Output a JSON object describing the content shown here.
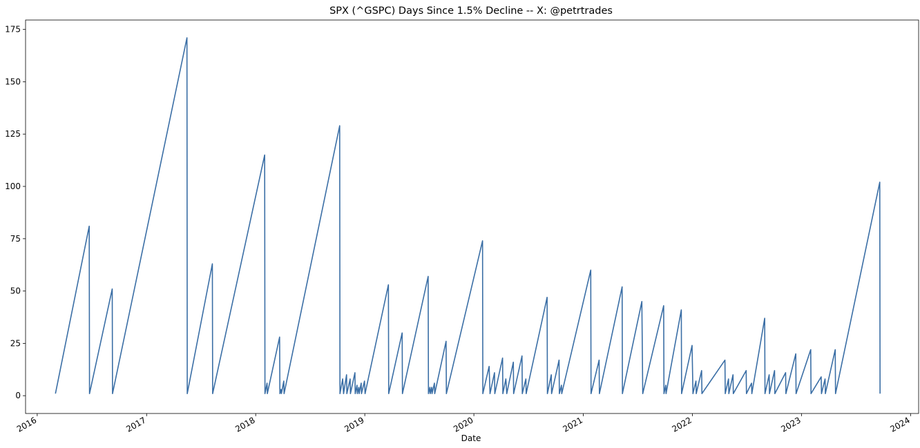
{
  "chart_data": {
    "type": "line",
    "title": "SPX (^GSPC) Days Since 1.5% Decline -- X: @petrtrades",
    "xlabel": "Date",
    "ylabel": "",
    "xlim": [
      "2015-11-23",
      "2024-01-28"
    ],
    "ylim": [
      -8.5,
      179.5
    ],
    "xticks": [
      "2016",
      "2017",
      "2018",
      "2019",
      "2020",
      "2021",
      "2022",
      "2023",
      "2024"
    ],
    "yticks": [
      0,
      25,
      50,
      75,
      100,
      125,
      150,
      175
    ],
    "grid": false,
    "legend": "none",
    "colors": {
      "line": "#3a6ea5",
      "frame": "#000000",
      "background": "#ffffff"
    },
    "series": [
      {
        "x": [
          "2016-03-02",
          "2016-06-23",
          "2016-06-24",
          "2016-09-08",
          "2016-09-09",
          "2017-05-16",
          "2017-05-17",
          "2017-08-09",
          "2017-08-10",
          "2018-01-31",
          "2018-02-01",
          "2018-02-08",
          "2018-02-09",
          "2018-03-22",
          "2018-03-23",
          "2018-03-27",
          "2018-03-28",
          "2018-04-05",
          "2018-04-06",
          "2018-10-09",
          "2018-10-10",
          "2018-10-19",
          "2018-10-22",
          "2018-11-01",
          "2018-11-02",
          "2018-11-13",
          "2018-11-14",
          "2018-11-29",
          "2018-11-30",
          "2018-12-06",
          "2018-12-07",
          "2018-12-12",
          "2018-12-13",
          "2018-12-20",
          "2018-12-21",
          "2018-12-31",
          "2019-01-02",
          "2019-03-21",
          "2019-03-22",
          "2019-05-06",
          "2019-05-07",
          "2019-08-01",
          "2019-08-02",
          "2019-08-07",
          "2019-08-08",
          "2019-08-13",
          "2019-08-14",
          "2019-08-22",
          "2019-08-23",
          "2019-09-30",
          "2019-10-01",
          "2020-01-30",
          "2020-01-31",
          "2020-02-21",
          "2020-02-24",
          "2020-03-10",
          "2020-03-11",
          "2020-04-06",
          "2020-04-07",
          "2020-04-17",
          "2020-04-20",
          "2020-05-12",
          "2020-05-13",
          "2020-06-10",
          "2020-06-11",
          "2020-06-23",
          "2020-06-24",
          "2020-09-02",
          "2020-09-03",
          "2020-09-16",
          "2020-09-17",
          "2020-10-12",
          "2020-10-13",
          "2020-10-20",
          "2020-10-21",
          "2021-01-26",
          "2021-01-27",
          "2021-02-23",
          "2021-02-24",
          "2021-05-11",
          "2021-05-12",
          "2021-07-16",
          "2021-07-19",
          "2021-09-27",
          "2021-09-28",
          "2021-10-04",
          "2021-10-05",
          "2021-11-25",
          "2021-11-26",
          "2021-12-31",
          "2022-01-03",
          "2022-01-13",
          "2022-01-14",
          "2022-02-01",
          "2022-02-02",
          "2022-04-20",
          "2022-04-21",
          "2022-05-02",
          "2022-05-03",
          "2022-05-17",
          "2022-05-18",
          "2022-06-30",
          "2022-07-01",
          "2022-07-18",
          "2022-07-19",
          "2022-08-31",
          "2022-09-01",
          "2022-09-15",
          "2022-09-16",
          "2022-10-03",
          "2022-10-04",
          "2022-11-09",
          "2022-11-10",
          "2022-12-13",
          "2022-12-14",
          "2023-02-01",
          "2023-02-02",
          "2023-03-08",
          "2023-03-09",
          "2023-03-21",
          "2023-03-22",
          "2023-04-24",
          "2023-04-25",
          "2023-09-20",
          "2023-09-21"
        ],
        "values": [
          1,
          81,
          1,
          51,
          1,
          171,
          1,
          63,
          1,
          115,
          1,
          6,
          1,
          28,
          1,
          3,
          1,
          7,
          1,
          129,
          1,
          8,
          1,
          10,
          1,
          8,
          1,
          11,
          1,
          5,
          1,
          4,
          1,
          6,
          1,
          7,
          1,
          53,
          1,
          30,
          1,
          57,
          1,
          4,
          1,
          4,
          1,
          6,
          1,
          26,
          1,
          74,
          1,
          14,
          1,
          11,
          1,
          18,
          1,
          8,
          1,
          16,
          1,
          19,
          1,
          8,
          1,
          47,
          1,
          10,
          1,
          17,
          1,
          5,
          1,
          60,
          1,
          17,
          1,
          52,
          1,
          45,
          1,
          43,
          1,
          5,
          1,
          41,
          1,
          24,
          1,
          7,
          1,
          12,
          1,
          17,
          1,
          8,
          1,
          10,
          1,
          12,
          1,
          6,
          1,
          37,
          1,
          10,
          1,
          12,
          1,
          11,
          1,
          20,
          1,
          22,
          1,
          9,
          1,
          8,
          1,
          22,
          1,
          102,
          1
        ]
      }
    ]
  }
}
